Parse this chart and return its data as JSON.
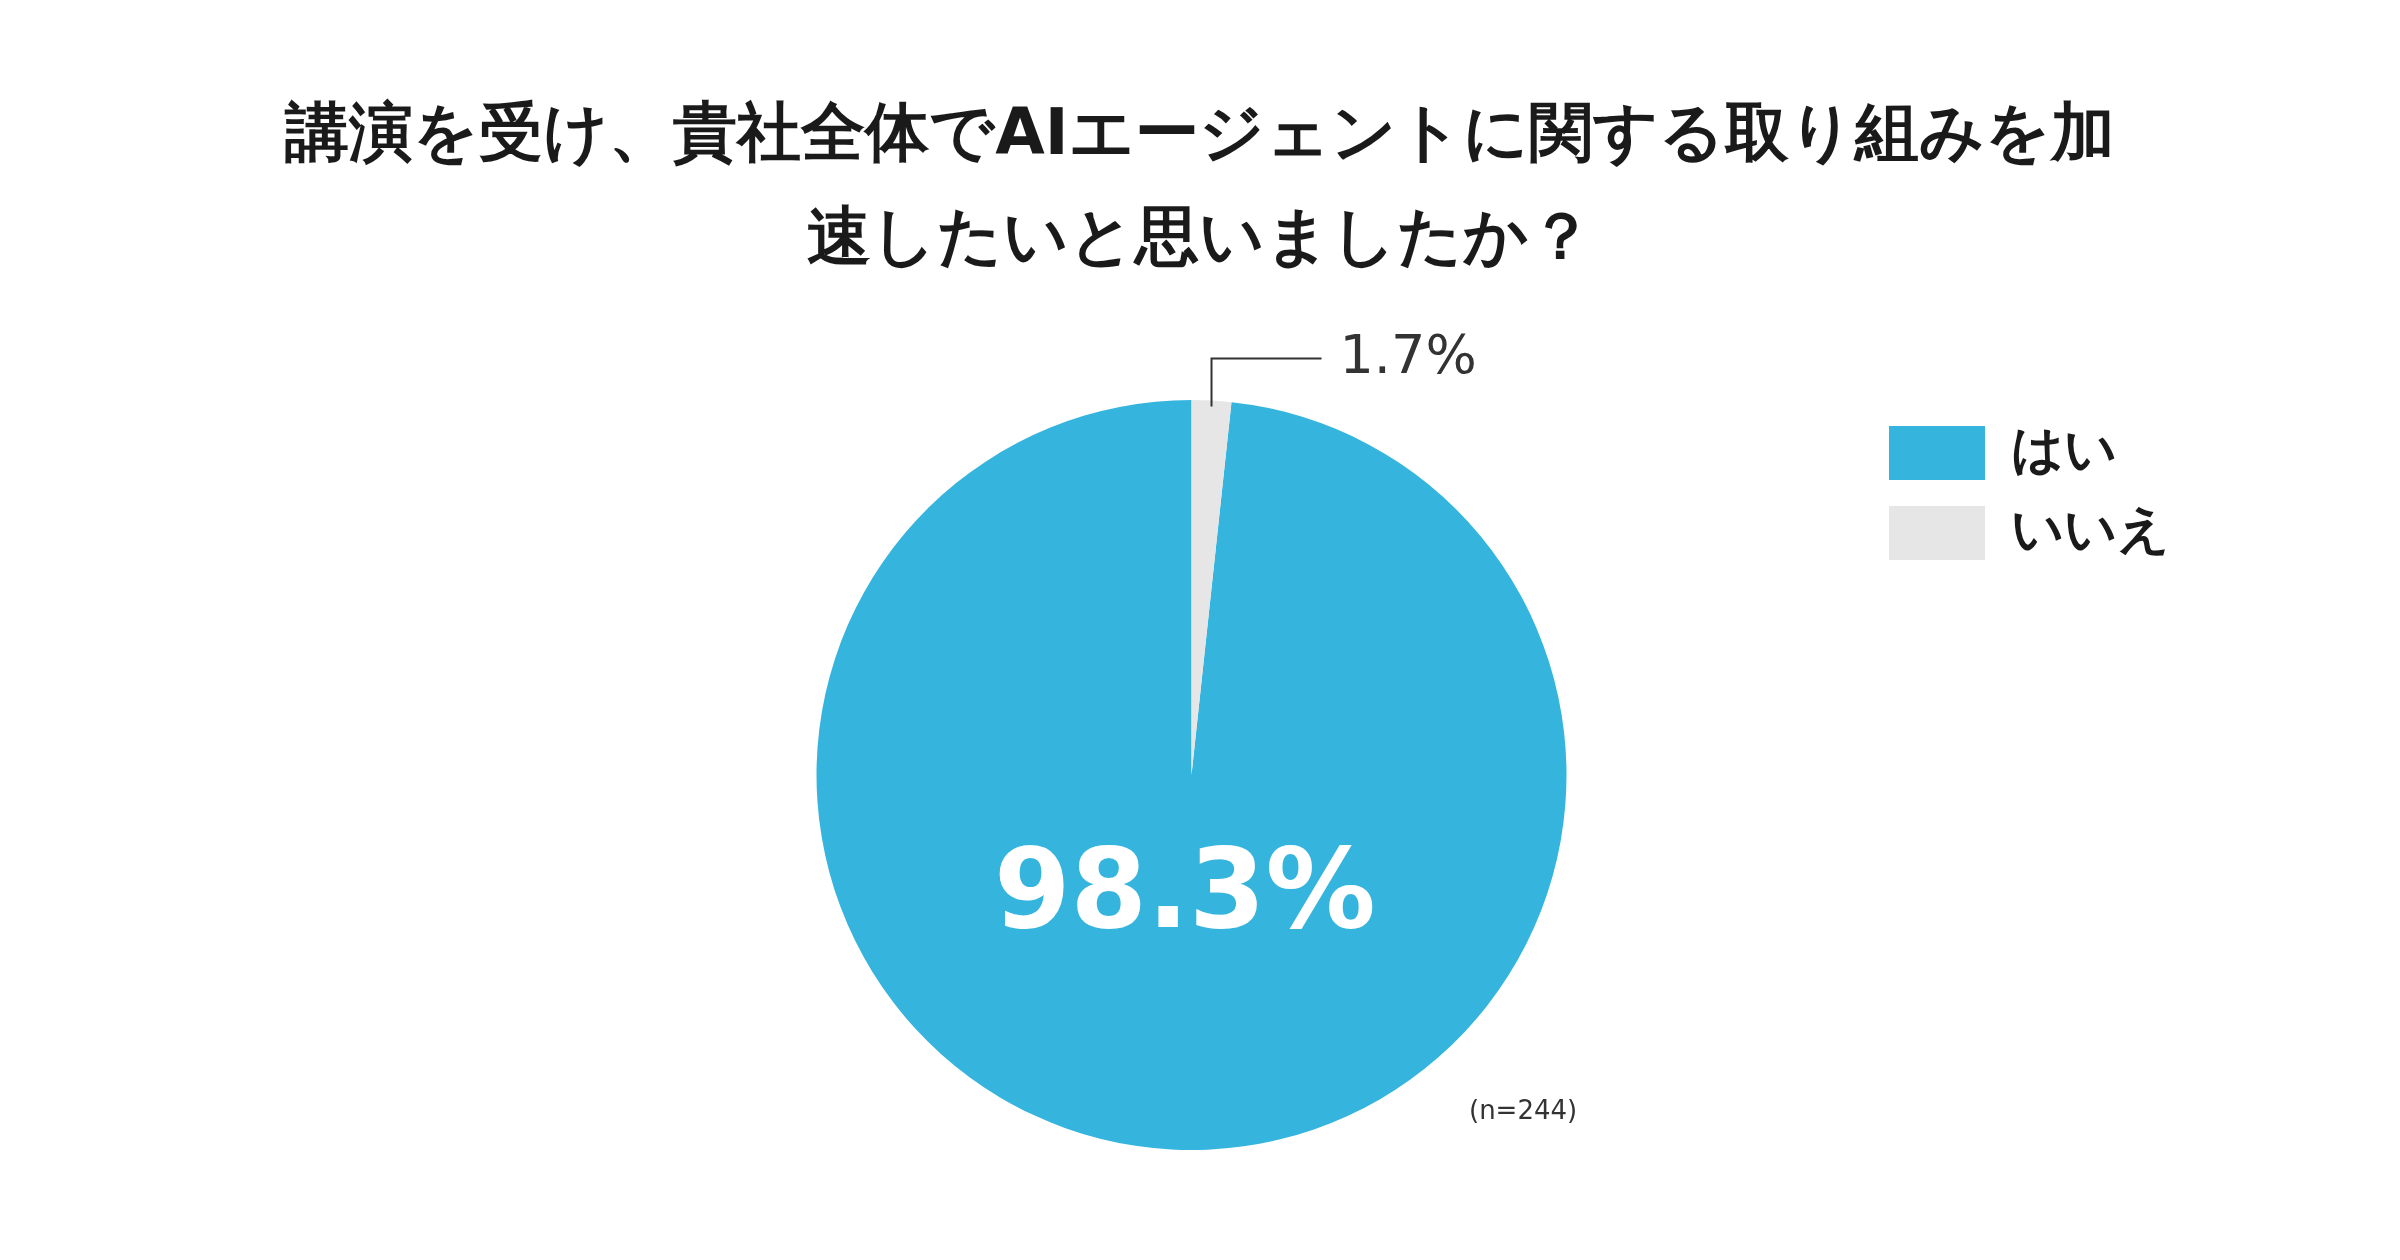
{
  "chart_data": {
    "type": "pie",
    "title": "講演を受け、貴社全体でAIエージェントに関する取り組みを加速したいと思いましたか？",
    "categories": [
      "はい",
      "いいえ"
    ],
    "values": [
      98.3,
      1.7
    ],
    "colors": [
      "#35b5de",
      "#e6e6e6"
    ],
    "value_labels": [
      "98.3%",
      "1.7%"
    ],
    "legend": "top right",
    "annotations": [
      "(n=244)"
    ]
  }
}
